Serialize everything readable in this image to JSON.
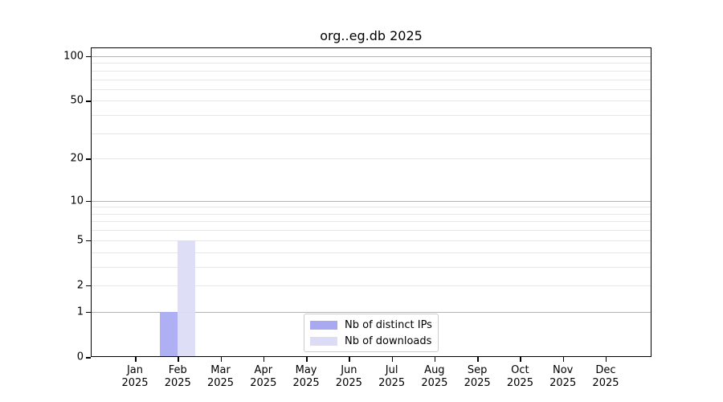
{
  "chart_data": {
    "type": "bar",
    "title": "org..eg.db 2025",
    "year": "2025",
    "categories": [
      {
        "month": "Jan",
        "year": "2025"
      },
      {
        "month": "Feb",
        "year": "2025"
      },
      {
        "month": "Mar",
        "year": "2025"
      },
      {
        "month": "Apr",
        "year": "2025"
      },
      {
        "month": "May",
        "year": "2025"
      },
      {
        "month": "Jun",
        "year": "2025"
      },
      {
        "month": "Jul",
        "year": "2025"
      },
      {
        "month": "Aug",
        "year": "2025"
      },
      {
        "month": "Sep",
        "year": "2025"
      },
      {
        "month": "Oct",
        "year": "2025"
      },
      {
        "month": "Nov",
        "year": "2025"
      },
      {
        "month": "Dec",
        "year": "2025"
      }
    ],
    "series": [
      {
        "name": "Nb of distinct IPs",
        "color": "#a9a9f2",
        "values": [
          0,
          1,
          0,
          0,
          0,
          0,
          0,
          0,
          0,
          0,
          0,
          0
        ]
      },
      {
        "name": "Nb of downloads",
        "color": "#dcdcf6",
        "values": [
          0,
          5,
          0,
          0,
          0,
          0,
          0,
          0,
          0,
          0,
          0,
          0
        ]
      }
    ],
    "y_axis": {
      "scale": "log1p",
      "ticks": [
        0,
        1,
        2,
        5,
        10,
        20,
        50,
        100
      ],
      "max": 114.6,
      "gridlines_major": [
        1,
        10,
        100
      ],
      "gridlines_minor": [
        2,
        3,
        4,
        5,
        6,
        7,
        8,
        9,
        20,
        30,
        40,
        50,
        60,
        70,
        80,
        90
      ]
    },
    "legend_position": "lower center",
    "grid": true,
    "colors": {
      "grid_major": "#b3b3b3",
      "grid_minor": "#e7e7e7",
      "spine": "#000000",
      "background": "#ffffff"
    }
  }
}
